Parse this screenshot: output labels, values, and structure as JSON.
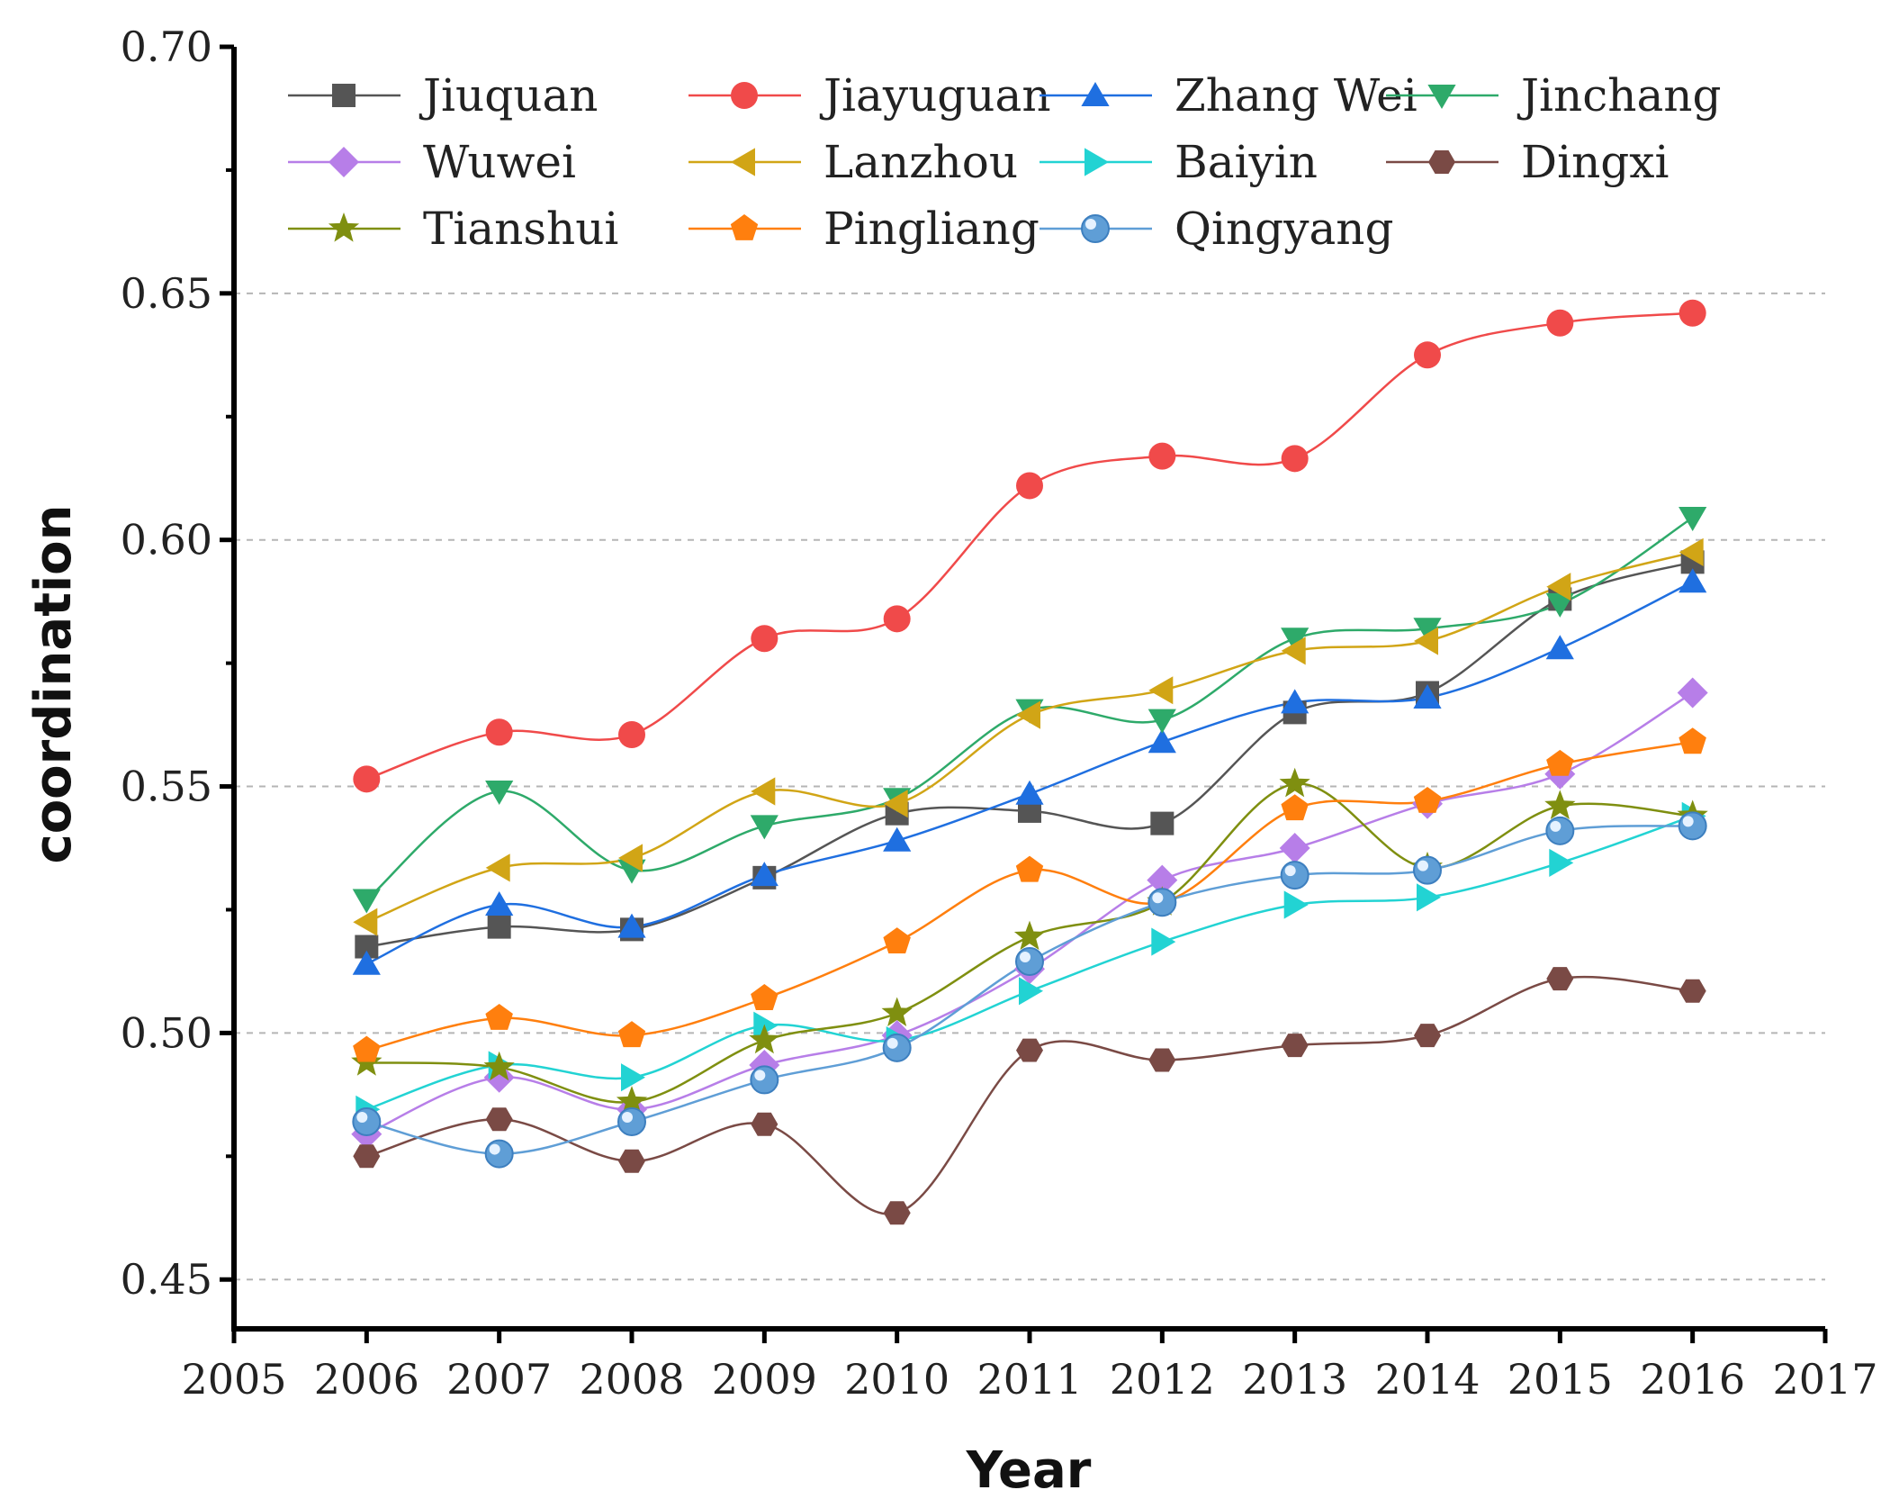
{
  "chart_data": {
    "type": "line",
    "xlabel": "Year",
    "ylabel": "coordination",
    "xlim": [
      2005,
      2017
    ],
    "ylim": [
      0.44,
      0.7
    ],
    "x_ticks": [
      "2005",
      "2006",
      "2007",
      "2008",
      "2009",
      "2010",
      "2011",
      "2012",
      "2013",
      "2014",
      "2015",
      "2016",
      "2017"
    ],
    "y_ticks": [
      "0.45",
      "0.50",
      "0.55",
      "0.60",
      "0.65",
      "0.70"
    ],
    "y_tick_values": [
      0.45,
      0.5,
      0.55,
      0.6,
      0.65,
      0.7
    ],
    "grid": "horizontal dashed",
    "legend_position": "top-left inside",
    "x": [
      2006,
      2007,
      2008,
      2009,
      2010,
      2011,
      2012,
      2013,
      2014,
      2015,
      2016
    ],
    "series": [
      {
        "name": "Jiuquan",
        "color": "#555555",
        "marker": "square",
        "values": [
          0.5175,
          0.5215,
          0.521,
          0.5315,
          0.5445,
          0.545,
          0.5425,
          0.565,
          0.569,
          0.588,
          0.5955
        ]
      },
      {
        "name": "Jiayuguan",
        "color": "#f04a4a",
        "marker": "circle",
        "values": [
          0.5515,
          0.561,
          0.5605,
          0.58,
          0.584,
          0.611,
          0.617,
          0.6165,
          0.6375,
          0.644,
          0.646
        ]
      },
      {
        "name": "Zhang Wei",
        "color": "#1f6fe0",
        "marker": "triangle-up",
        "values": [
          0.514,
          0.526,
          0.5215,
          0.532,
          0.539,
          0.5485,
          0.559,
          0.567,
          0.568,
          0.578,
          0.5915
        ]
      },
      {
        "name": "Jinchang",
        "color": "#2eaa6a",
        "marker": "triangle-down",
        "values": [
          0.527,
          0.549,
          0.533,
          0.542,
          0.5475,
          0.5655,
          0.5635,
          0.58,
          0.582,
          0.587,
          0.6045
        ]
      },
      {
        "name": "Wuwei",
        "color": "#b77ee8",
        "marker": "diamond",
        "values": [
          0.4795,
          0.491,
          0.4845,
          0.4935,
          0.4995,
          0.513,
          0.531,
          0.5375,
          0.5465,
          0.5525,
          0.569
        ]
      },
      {
        "name": "Lanzhou",
        "color": "#d1a516",
        "marker": "triangle-left",
        "values": [
          0.5225,
          0.5335,
          0.5355,
          0.549,
          0.5465,
          0.5645,
          0.5695,
          0.5775,
          0.5795,
          0.5905,
          0.5975
        ]
      },
      {
        "name": "Baiyin",
        "color": "#22d3d3",
        "marker": "triangle-right",
        "values": [
          0.4845,
          0.4935,
          0.491,
          0.5015,
          0.4985,
          0.5085,
          0.5185,
          0.526,
          0.5275,
          0.5345,
          0.544
        ]
      },
      {
        "name": "Dingxi",
        "color": "#7a4a45",
        "marker": "hexagon",
        "values": [
          0.475,
          0.4825,
          0.474,
          0.4815,
          0.4635,
          0.4965,
          0.4945,
          0.4975,
          0.4995,
          0.511,
          0.5085
        ]
      },
      {
        "name": "Tianshui",
        "color": "#7f8f10",
        "marker": "star",
        "values": [
          0.494,
          0.493,
          0.486,
          0.4985,
          0.504,
          0.5195,
          0.5265,
          0.5505,
          0.5335,
          0.546,
          0.544
        ]
      },
      {
        "name": "Pingliang",
        "color": "#ff7f0e",
        "marker": "pentagon",
        "values": [
          0.4965,
          0.503,
          0.4995,
          0.507,
          0.5185,
          0.533,
          0.5265,
          0.5455,
          0.547,
          0.5545,
          0.559
        ]
      },
      {
        "name": "Qingyang",
        "color": "#5f9ed6",
        "marker": "sphere",
        "values": [
          0.482,
          0.4755,
          0.482,
          0.4905,
          0.497,
          0.5145,
          0.5265,
          0.532,
          0.533,
          0.541,
          0.542
        ]
      }
    ]
  }
}
